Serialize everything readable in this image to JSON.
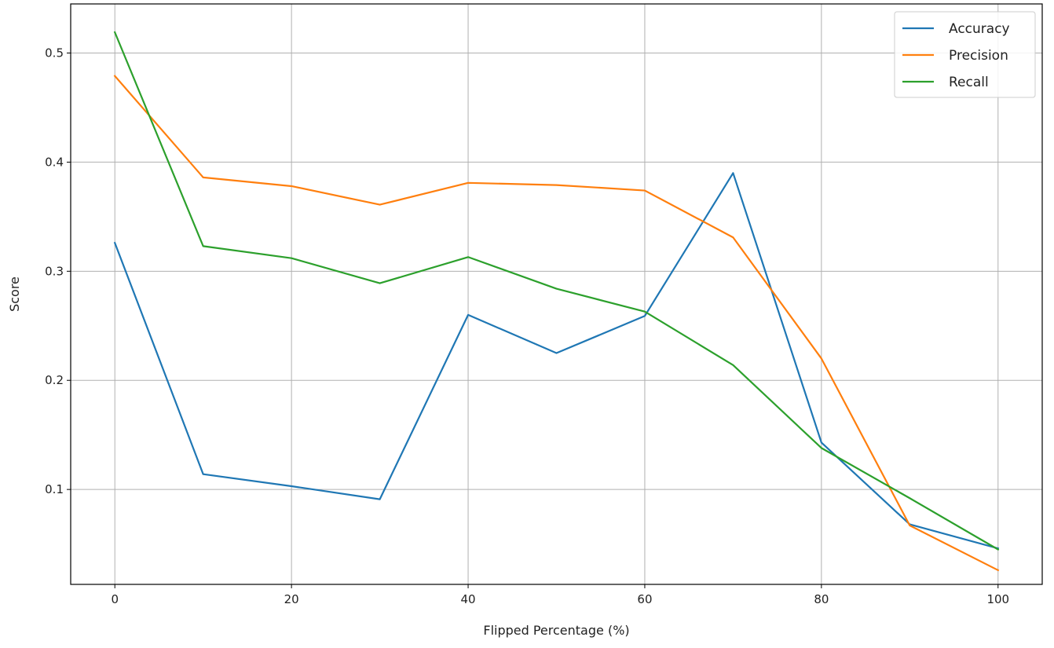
{
  "chart_data": {
    "type": "line",
    "title": "",
    "xlabel": "Flipped Percentage (%)",
    "ylabel": "Score",
    "x": [
      0,
      10,
      20,
      30,
      40,
      50,
      60,
      70,
      80,
      90,
      100
    ],
    "xlim": [
      -5,
      105
    ],
    "ylim": [
      0.013,
      0.545
    ],
    "xticks": [
      0,
      20,
      40,
      60,
      80,
      100
    ],
    "xtick_labels": [
      "0",
      "20",
      "40",
      "60",
      "80",
      "100"
    ],
    "yticks": [
      0.1,
      0.2,
      0.3,
      0.4,
      0.5
    ],
    "ytick_labels": [
      "0.1",
      "0.2",
      "0.3",
      "0.4",
      "0.5"
    ],
    "grid": true,
    "legend_position": "top-right",
    "series": [
      {
        "name": "Accuracy",
        "color": "#1f77b4",
        "values": [
          0.326,
          0.114,
          0.103,
          0.091,
          0.26,
          0.225,
          0.259,
          0.39,
          0.143,
          0.068,
          0.046
        ]
      },
      {
        "name": "Precision",
        "color": "#ff7f0e",
        "values": [
          0.479,
          0.386,
          0.378,
          0.361,
          0.381,
          0.379,
          0.374,
          0.331,
          0.22,
          0.067,
          0.026
        ]
      },
      {
        "name": "Recall",
        "color": "#2ca02c",
        "values": [
          0.519,
          0.323,
          0.312,
          0.289,
          0.313,
          0.284,
          0.263,
          0.214,
          0.138,
          0.092,
          0.045
        ]
      }
    ]
  }
}
